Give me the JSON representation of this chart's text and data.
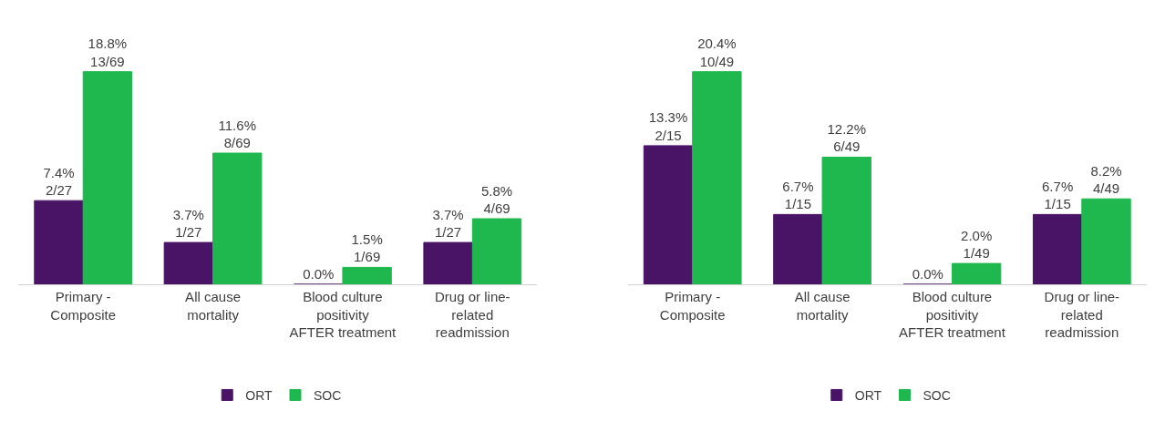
{
  "chart_data": [
    {
      "type": "bar",
      "categories": [
        "Primary - Composite",
        "All cause mortality",
        "Blood culture positivity AFTER treatment",
        "Drug or line-related readmission"
      ],
      "legend": "bottom",
      "series": [
        {
          "name": "ORT",
          "color": "#4a1466",
          "values": [
            7.4,
            3.7,
            0.0,
            3.7
          ],
          "value_labels": [
            "7.4%\n2/27",
            "3.7%\n1/27",
            "0.0%",
            "3.7%\n1/27"
          ]
        },
        {
          "name": "SOC",
          "color": "#1fb84f",
          "values": [
            18.8,
            11.6,
            1.5,
            5.8
          ],
          "value_labels": [
            "18.8%\n13/69",
            "11.6%\n8/69",
            "1.5%\n1/69",
            "5.8%\n4/69"
          ]
        }
      ]
    },
    {
      "type": "bar",
      "categories": [
        "Primary - Composite",
        "All cause mortality",
        "Blood culture positivity AFTER treatment",
        "Drug or line-related readmission"
      ],
      "legend": "bottom",
      "series": [
        {
          "name": "ORT",
          "color": "#4a1466",
          "values": [
            13.3,
            6.7,
            0.0,
            6.7
          ],
          "value_labels": [
            "13.3%\n2/15",
            "6.7%\n1/15",
            "0.0%",
            "6.7%\n1/15"
          ]
        },
        {
          "name": "SOC",
          "color": "#1fb84f",
          "values": [
            20.4,
            12.2,
            2.0,
            8.2
          ],
          "value_labels": [
            "20.4%\n10/49",
            "12.2%\n6/49",
            "2.0%\n1/49",
            "8.2%\n4/49"
          ]
        }
      ]
    }
  ]
}
